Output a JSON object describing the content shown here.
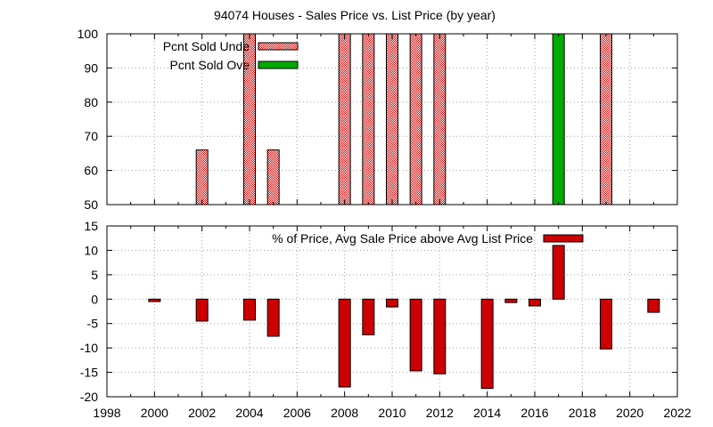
{
  "chart_data": [
    {
      "type": "bar",
      "title": "94074 Houses - Sales Price vs. List Price (by year)",
      "xlim": [
        1998,
        2022
      ],
      "ylim": [
        50,
        100
      ],
      "yticks": [
        50,
        60,
        70,
        80,
        90,
        100
      ],
      "grid": true,
      "legend_position": "top-left",
      "series": [
        {
          "name": "Pcnt Sold Unde",
          "color": "#cc0000",
          "fill": "checkered",
          "points": [
            {
              "x": 2002,
              "y": 66
            },
            {
              "x": 2004,
              "y": 100
            },
            {
              "x": 2005,
              "y": 66
            },
            {
              "x": 2008,
              "y": 100
            },
            {
              "x": 2009,
              "y": 100
            },
            {
              "x": 2010,
              "y": 100
            },
            {
              "x": 2011,
              "y": 100
            },
            {
              "x": 2012,
              "y": 100
            },
            {
              "x": 2019,
              "y": 100
            }
          ]
        },
        {
          "name": "Pcnt Sold Ove",
          "color": "#00aa00",
          "fill": "solid",
          "points": [
            {
              "x": 2017,
              "y": 100
            }
          ]
        }
      ]
    },
    {
      "type": "bar",
      "xlim": [
        1998,
        2022
      ],
      "ylim": [
        -20,
        15
      ],
      "yticks": [
        -20,
        -15,
        -10,
        -5,
        0,
        5,
        10,
        15
      ],
      "xticks": [
        1998,
        2000,
        2002,
        2004,
        2006,
        2008,
        2010,
        2012,
        2014,
        2016,
        2018,
        2020,
        2022
      ],
      "grid": true,
      "legend_position": "top-right",
      "series": [
        {
          "name": "% of Price, Avg Sale Price above Avg List Price",
          "color": "#cc0000",
          "fill": "solid",
          "points": [
            {
              "x": 2000,
              "y": -0.5
            },
            {
              "x": 2002,
              "y": -4.5
            },
            {
              "x": 2004,
              "y": -4.3
            },
            {
              "x": 2005,
              "y": -7.6
            },
            {
              "x": 2008,
              "y": -18.0
            },
            {
              "x": 2009,
              "y": -7.3
            },
            {
              "x": 2010,
              "y": -1.6
            },
            {
              "x": 2011,
              "y": -14.7
            },
            {
              "x": 2012,
              "y": -15.3
            },
            {
              "x": 2014,
              "y": -18.3
            },
            {
              "x": 2015,
              "y": -0.7
            },
            {
              "x": 2016,
              "y": -1.4
            },
            {
              "x": 2017,
              "y": 11.0
            },
            {
              "x": 2019,
              "y": -10.2
            },
            {
              "x": 2021,
              "y": -2.7
            }
          ]
        }
      ]
    }
  ]
}
